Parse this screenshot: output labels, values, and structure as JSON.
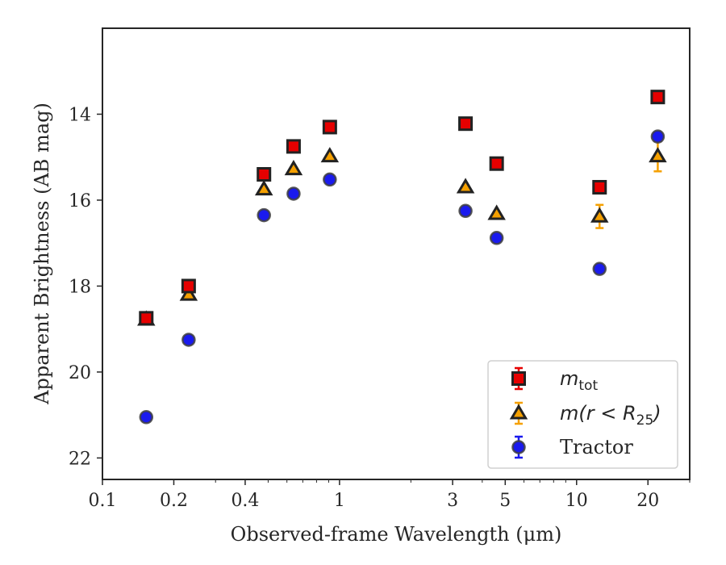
{
  "chart_data": {
    "type": "scatter",
    "xlabel": "Observed-frame Wavelength (μm)",
    "ylabel": "Apparent Brightness (AB mag)",
    "x_scale": "log",
    "y_inverted": true,
    "xlim": [
      0.1,
      30
    ],
    "ylim": [
      22.5,
      12.0
    ],
    "x_ticks": [
      0.1,
      0.2,
      0.4,
      1,
      3,
      5,
      10,
      20
    ],
    "x_tick_labels": [
      "0.1",
      "0.2",
      "0.4",
      "1",
      "3",
      "5",
      "10",
      "20"
    ],
    "y_ticks": [
      14,
      16,
      18,
      20,
      22
    ],
    "y_tick_labels": [
      "14",
      "16",
      "18",
      "20",
      "22"
    ],
    "grid": false,
    "legend_position": "lower-right",
    "series": [
      {
        "name": "m_tot",
        "marker": "square",
        "color": "#e60000",
        "edge_color": "#222222",
        "error_color": "#e60000",
        "x": [
          0.153,
          0.231,
          0.48,
          0.64,
          0.91,
          3.4,
          4.6,
          12.5,
          22.0
        ],
        "y": [
          18.75,
          18.0,
          15.4,
          14.75,
          14.3,
          14.22,
          15.15,
          15.7,
          13.6
        ],
        "yerr": [
          0.06,
          0.05,
          0.03,
          0.03,
          0.03,
          0.03,
          0.03,
          0.05,
          0.07
        ]
      },
      {
        "name": "m(r < R_25)",
        "marker": "triangle",
        "color": "#f5a000",
        "edge_color": "#222222",
        "error_color": "#f5a000",
        "x": [
          0.153,
          0.231,
          0.48,
          0.64,
          0.91,
          3.4,
          4.6,
          12.5,
          22.0
        ],
        "y": [
          18.78,
          18.2,
          15.75,
          15.28,
          14.98,
          15.7,
          16.32,
          16.38,
          14.98
        ],
        "yerr": [
          0.06,
          0.05,
          0.03,
          0.03,
          0.03,
          0.03,
          0.04,
          0.27,
          0.35
        ]
      },
      {
        "name": "Tractor",
        "marker": "circle",
        "color": "#1a1aee",
        "edge_color": "#404040",
        "error_color": "#1a1aee",
        "x": [
          0.153,
          0.231,
          0.48,
          0.64,
          0.91,
          3.4,
          4.6,
          12.5,
          22.0
        ],
        "y": [
          21.05,
          19.25,
          16.35,
          15.85,
          15.52,
          16.25,
          16.88,
          17.6,
          14.52
        ],
        "yerr": [
          0.06,
          0.05,
          0.03,
          0.03,
          0.03,
          0.03,
          0.03,
          0.05,
          0.1
        ]
      }
    ],
    "legend": [
      {
        "series": 0,
        "label_base": "m",
        "label_sub": "tot"
      },
      {
        "series": 1,
        "label_base": "m(r < R",
        "label_sub": "25",
        "label_tail": ")"
      },
      {
        "series": 2,
        "label_base": "Tractor"
      }
    ]
  }
}
